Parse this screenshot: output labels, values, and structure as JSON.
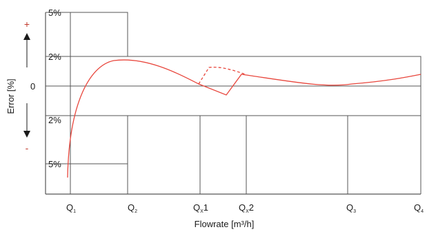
{
  "diagram": {
    "y_axis_label": "Error [%]",
    "x_axis_label": "Flowrate [m³/h]",
    "sign_plus": "+",
    "sign_minus": "-",
    "y_ticks": {
      "plus_5": "5%",
      "plus_2": "2%",
      "zero": "0",
      "minus_2": "2%",
      "minus_5": "5%"
    },
    "x_ticks": [
      {
        "base": "Q",
        "sub": "1",
        "suffix": ""
      },
      {
        "base": "Q",
        "sub": "2",
        "suffix": ""
      },
      {
        "base": "Q",
        "sub": "X",
        "suffix": "1"
      },
      {
        "base": "Q",
        "sub": "X",
        "suffix": "2"
      },
      {
        "base": "Q",
        "sub": "3",
        "suffix": ""
      },
      {
        "base": "Q",
        "sub": "4",
        "suffix": ""
      }
    ],
    "colors": {
      "curve": "#e8463c",
      "grid": "#555555",
      "sign": "#c0392b",
      "text": "#1a1a1a"
    }
  }
}
